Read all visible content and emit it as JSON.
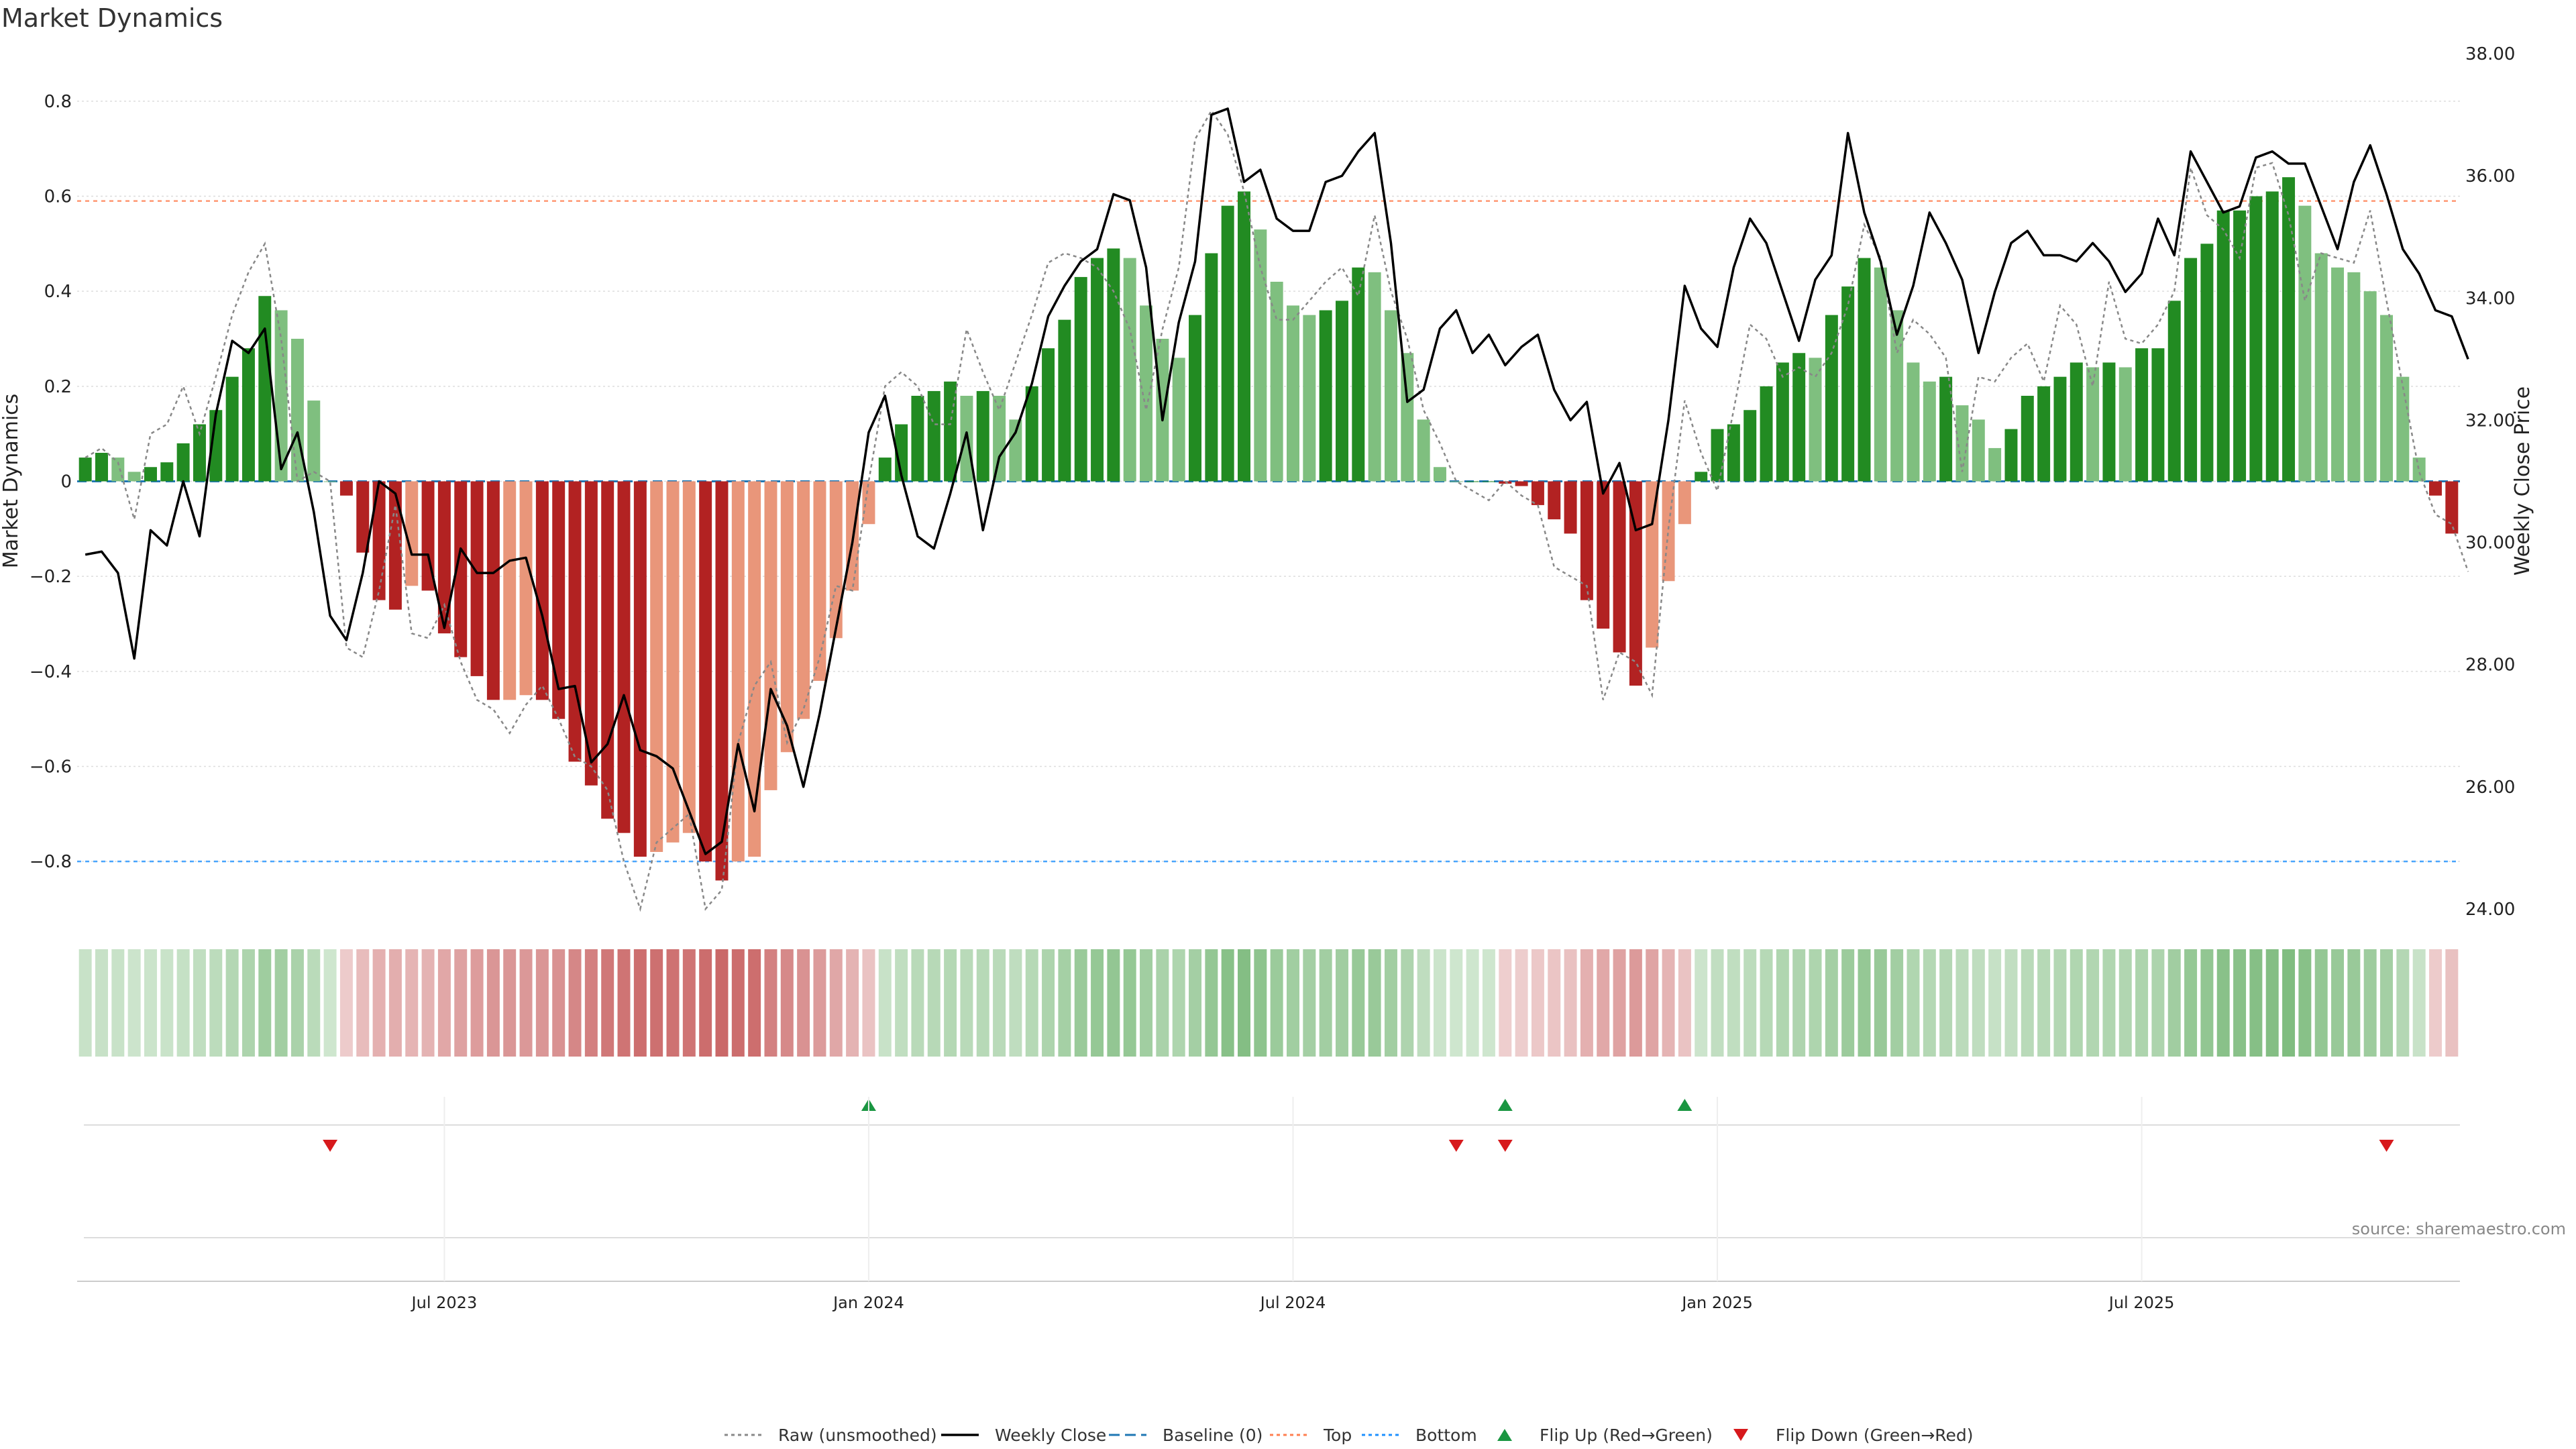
{
  "chart_data": {
    "type": "bar",
    "title": "Market Dynamics",
    "ylabel_left": "Market Dynamics",
    "ylabel_right": "Weekly Close Price",
    "source": "source: sharemaestro.com",
    "ylim_left": [
      -0.9,
      0.9
    ],
    "ylim_right": [
      24.0,
      38.0
    ],
    "yticks_left": [
      "−0.8",
      "−0.6",
      "−0.4",
      "−0.2",
      "0",
      "0.2",
      "0.4",
      "0.6",
      "0.8"
    ],
    "yticks_right": [
      "24.00",
      "26.00",
      "28.00",
      "30.00",
      "32.00",
      "34.00",
      "36.00",
      "38.00"
    ],
    "yticks_left_values": [
      -0.8,
      -0.6,
      -0.4,
      -0.2,
      0,
      0.2,
      0.4,
      0.6,
      0.8
    ],
    "yticks_right_values": [
      24,
      26,
      28,
      30,
      32,
      34,
      36,
      38
    ],
    "xticks": [
      {
        "label": "Jul 2023",
        "index": 22
      },
      {
        "label": "Jan 2024",
        "index": 48
      },
      {
        "label": "Jul 2024",
        "index": 74
      },
      {
        "label": "Jan 2025",
        "index": 100
      },
      {
        "label": "Jul 2025",
        "index": 126
      }
    ],
    "reference_lines": {
      "baseline": 0,
      "top": 0.59,
      "bottom": -0.8
    },
    "colors": {
      "green_strong": "#228b22",
      "green_light": "#7fbf7f",
      "red_strong": "#b22222",
      "red_light": "#e9967a",
      "raw": "#888888",
      "close": "#000000",
      "baseline": "#1f77b4",
      "top": "#ff7f50",
      "bottom": "#1e90ff",
      "flip_up": "#1a9641",
      "flip_down": "#d7191c"
    },
    "series": [
      {
        "name": "Market Dynamics",
        "values": [
          0.05,
          0.06,
          0.05,
          0.02,
          0.03,
          0.04,
          0.08,
          0.12,
          0.15,
          0.22,
          0.28,
          0.39,
          0.36,
          0.3,
          0.17,
          0.0,
          -0.03,
          -0.15,
          -0.25,
          -0.27,
          -0.22,
          -0.23,
          -0.32,
          -0.37,
          -0.41,
          -0.46,
          -0.46,
          -0.45,
          -0.46,
          -0.5,
          -0.59,
          -0.64,
          -0.71,
          -0.74,
          -0.79,
          -0.78,
          -0.76,
          -0.74,
          -0.8,
          -0.84,
          -0.8,
          -0.79,
          -0.65,
          -0.57,
          -0.5,
          -0.42,
          -0.33,
          -0.23,
          -0.09,
          0.05,
          0.12,
          0.18,
          0.19,
          0.21,
          0.18,
          0.19,
          0.18,
          0.13,
          0.2,
          0.28,
          0.34,
          0.43,
          0.47,
          0.49,
          0.47,
          0.37,
          0.3,
          0.26,
          0.35,
          0.48,
          0.58,
          0.61,
          0.53,
          0.42,
          0.37,
          0.35,
          0.36,
          0.38,
          0.45,
          0.44,
          0.36,
          0.27,
          0.13,
          0.03,
          0.0,
          0.0,
          0.0,
          -0.005,
          -0.01,
          -0.05,
          -0.08,
          -0.11,
          -0.25,
          -0.31,
          -0.36,
          -0.43,
          -0.35,
          -0.21,
          -0.09,
          0.02,
          0.11,
          0.12,
          0.15,
          0.2,
          0.25,
          0.27,
          0.26,
          0.35,
          0.41,
          0.47,
          0.45,
          0.36,
          0.25,
          0.21,
          0.22,
          0.16,
          0.13,
          0.07,
          0.11,
          0.18,
          0.2,
          0.22,
          0.25,
          0.24,
          0.25,
          0.24,
          0.28,
          0.28,
          0.38,
          0.47,
          0.5,
          0.57,
          0.57,
          0.6,
          0.61,
          0.64,
          0.58,
          0.48,
          0.45,
          0.44,
          0.4,
          0.35,
          0.22,
          0.05,
          -0.03,
          -0.11
        ]
      },
      {
        "name": "Raw (unsmoothed)",
        "values": [
          0.05,
          0.07,
          0.04,
          -0.08,
          0.1,
          0.12,
          0.2,
          0.1,
          0.22,
          0.35,
          0.44,
          0.5,
          0.3,
          0.0,
          0.02,
          0.0,
          -0.35,
          -0.37,
          -0.23,
          -0.05,
          -0.32,
          -0.33,
          -0.26,
          -0.38,
          -0.46,
          -0.48,
          -0.53,
          -0.47,
          -0.43,
          -0.5,
          -0.58,
          -0.6,
          -0.65,
          -0.8,
          -0.9,
          -0.76,
          -0.73,
          -0.7,
          -0.9,
          -0.86,
          -0.55,
          -0.43,
          -0.38,
          -0.55,
          -0.48,
          -0.37,
          -0.22,
          -0.23,
          0.0,
          0.2,
          0.23,
          0.2,
          0.12,
          0.12,
          0.32,
          0.23,
          0.15,
          0.25,
          0.35,
          0.46,
          0.48,
          0.47,
          0.45,
          0.4,
          0.32,
          0.15,
          0.32,
          0.45,
          0.72,
          0.78,
          0.73,
          0.61,
          0.45,
          0.34,
          0.34,
          0.38,
          0.42,
          0.45,
          0.39,
          0.56,
          0.4,
          0.3,
          0.15,
          0.08,
          0.0,
          -0.02,
          -0.04,
          0.0,
          -0.03,
          -0.05,
          -0.18,
          -0.2,
          -0.22,
          -0.46,
          -0.36,
          -0.38,
          -0.45,
          -0.1,
          0.17,
          0.06,
          -0.02,
          0.15,
          0.33,
          0.3,
          0.22,
          0.24,
          0.22,
          0.27,
          0.37,
          0.54,
          0.47,
          0.27,
          0.34,
          0.31,
          0.26,
          0.02,
          0.22,
          0.21,
          0.26,
          0.29,
          0.21,
          0.37,
          0.33,
          0.2,
          0.42,
          0.3,
          0.29,
          0.33,
          0.4,
          0.66,
          0.56,
          0.53,
          0.47,
          0.66,
          0.67,
          0.56,
          0.38,
          0.48,
          0.47,
          0.46,
          0.57,
          0.38,
          0.2,
          0.02,
          -0.07,
          -0.09,
          -0.19
        ]
      },
      {
        "name": "Weekly Close",
        "values": [
          29.8,
          29.85,
          29.5,
          28.1,
          30.2,
          29.95,
          31.0,
          30.1,
          32.1,
          33.3,
          33.1,
          33.5,
          31.2,
          31.8,
          30.5,
          28.8,
          28.4,
          29.5,
          31.0,
          30.8,
          29.8,
          29.8,
          28.6,
          29.9,
          29.5,
          29.5,
          29.7,
          29.75,
          28.8,
          27.6,
          27.65,
          26.4,
          26.7,
          27.5,
          26.6,
          26.5,
          26.3,
          25.6,
          24.9,
          25.1,
          26.7,
          25.6,
          27.6,
          27.0,
          26.0,
          27.2,
          28.6,
          30.0,
          31.8,
          32.4,
          31.1,
          30.1,
          29.9,
          30.8,
          31.8,
          30.2,
          31.4,
          31.8,
          32.6,
          33.7,
          34.2,
          34.6,
          34.8,
          35.7,
          35.6,
          34.5,
          32.0,
          33.6,
          34.6,
          37.0,
          37.1,
          35.9,
          36.1,
          35.3,
          35.1,
          35.1,
          35.9,
          36.0,
          36.4,
          36.7,
          34.9,
          32.3,
          32.5,
          33.5,
          33.8,
          33.1,
          33.4,
          32.9,
          33.2,
          33.4,
          32.5,
          32.0,
          32.3,
          30.8,
          31.3,
          30.2,
          30.3,
          32.0,
          34.2,
          33.5,
          33.2,
          34.5,
          35.3,
          34.9,
          34.1,
          33.3,
          34.3,
          34.7,
          36.7,
          35.4,
          34.6,
          33.4,
          34.2,
          35.4,
          34.9,
          34.3,
          33.1,
          34.1,
          34.9,
          35.1,
          34.7,
          34.7,
          34.6,
          34.9,
          34.6,
          34.1,
          34.4,
          35.3,
          34.7,
          36.4,
          35.9,
          35.4,
          35.5,
          36.3,
          36.4,
          36.2,
          36.2,
          35.5,
          34.8,
          35.9,
          36.5,
          35.7,
          34.8,
          34.4,
          33.8,
          33.7,
          33.0
        ]
      }
    ],
    "heat_strip": [
      0.05,
      0.06,
      0.05,
      0.02,
      0.03,
      0.04,
      0.08,
      0.12,
      0.15,
      0.22,
      0.28,
      0.39,
      0.36,
      0.3,
      0.17,
      0.0,
      -0.03,
      -0.15,
      -0.25,
      -0.27,
      -0.22,
      -0.23,
      -0.32,
      -0.37,
      -0.41,
      -0.46,
      -0.46,
      -0.45,
      -0.46,
      -0.5,
      -0.59,
      -0.64,
      -0.71,
      -0.74,
      -0.79,
      -0.78,
      -0.76,
      -0.74,
      -0.8,
      -0.84,
      -0.8,
      -0.79,
      -0.65,
      -0.57,
      -0.5,
      -0.42,
      -0.33,
      -0.23,
      -0.09,
      0.05,
      0.12,
      0.18,
      0.19,
      0.21,
      0.18,
      0.19,
      0.18,
      0.13,
      0.2,
      0.28,
      0.34,
      0.43,
      0.47,
      0.49,
      0.47,
      0.37,
      0.3,
      0.26,
      0.35,
      0.48,
      0.58,
      0.61,
      0.53,
      0.42,
      0.37,
      0.35,
      0.36,
      0.38,
      0.45,
      0.44,
      0.36,
      0.27,
      0.13,
      0.03,
      0.0,
      0.0,
      0.0,
      -0.005,
      -0.01,
      -0.05,
      -0.08,
      -0.11,
      -0.25,
      -0.31,
      -0.36,
      -0.43,
      -0.35,
      -0.21,
      -0.09,
      0.02,
      0.11,
      0.12,
      0.15,
      0.2,
      0.25,
      0.27,
      0.26,
      0.35,
      0.41,
      0.47,
      0.45,
      0.36,
      0.25,
      0.21,
      0.22,
      0.16,
      0.13,
      0.07,
      0.11,
      0.18,
      0.2,
      0.22,
      0.25,
      0.24,
      0.25,
      0.24,
      0.28,
      0.28,
      0.38,
      0.47,
      0.5,
      0.57,
      0.57,
      0.6,
      0.61,
      0.64,
      0.58,
      0.48,
      0.45,
      0.44,
      0.4,
      0.35,
      0.22,
      0.05,
      -0.03,
      -0.11
    ],
    "flips": {
      "up": [
        48,
        87,
        98
      ],
      "down": [
        15,
        84,
        87,
        141
      ]
    },
    "legend": [
      {
        "label": "Raw (unsmoothed)",
        "kind": "dotted",
        "color": "#888888"
      },
      {
        "label": "Weekly Close",
        "kind": "solid",
        "color": "#000000"
      },
      {
        "label": "Baseline (0)",
        "kind": "dashed",
        "color": "#1f77b4"
      },
      {
        "label": "Top",
        "kind": "dotted",
        "color": "#ff7f50"
      },
      {
        "label": "Bottom",
        "kind": "dotted",
        "color": "#1e90ff"
      },
      {
        "label": "Flip Up (Red→Green)",
        "kind": "tri-up",
        "color": "#1a9641"
      },
      {
        "label": "Flip Down (Green→Red)",
        "kind": "tri-down",
        "color": "#d7191c"
      }
    ]
  }
}
